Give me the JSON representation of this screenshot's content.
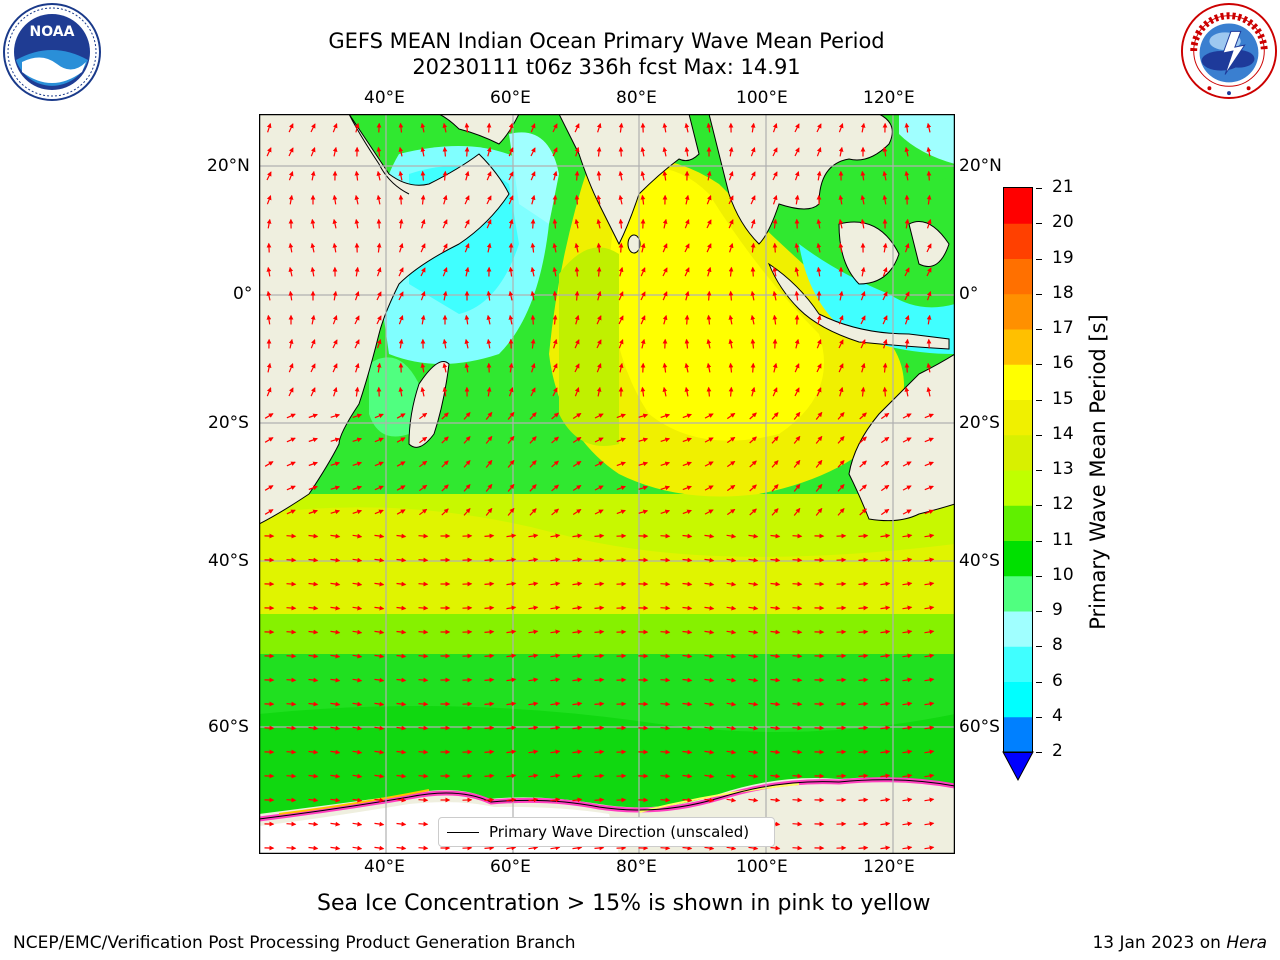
{
  "title": {
    "line1": "GEFS MEAN Indian Ocean Primary Wave Mean Period",
    "line2": "20230111 t06z 336h fcst   Max: 14.91"
  },
  "logos": {
    "noaa": {
      "text": "NOAA",
      "ring_text": "NATIONAL OCEANIC AND ATMOSPHERIC ADMINISTRATION · U.S. DEPARTMENT OF COMMERCE"
    },
    "nws": {
      "ring_text": "NATIONAL WEATHER SERVICE"
    }
  },
  "map": {
    "lon_ticks": [
      "40°E",
      "60°E",
      "80°E",
      "100°E",
      "120°E"
    ],
    "lat_ticks_left": [
      "20°N",
      "0°",
      "20°S",
      "40°S",
      "60°S"
    ],
    "lat_ticks_right": [
      "20°N",
      "0°",
      "20°S",
      "40°S",
      "60°S"
    ],
    "legend_label": "Primary Wave Direction (unscaled)",
    "extent": {
      "lon": [
        20,
        130
      ],
      "lat": [
        -75,
        27
      ]
    }
  },
  "colorbar": {
    "label": "Primary Wave Mean Period [s]",
    "ticks": [
      "21",
      "20",
      "19",
      "18",
      "17",
      "16",
      "15",
      "14",
      "13",
      "12",
      "11",
      "10",
      "9",
      "8",
      "6",
      "4",
      "2"
    ],
    "bins": [
      {
        "from": 2,
        "to": 4,
        "color": "#0080ff"
      },
      {
        "from": 4,
        "to": 6,
        "color": "#00ffff"
      },
      {
        "from": 6,
        "to": 8,
        "color": "#40ffff"
      },
      {
        "from": 8,
        "to": 9,
        "color": "#a0ffff"
      },
      {
        "from": 9,
        "to": 10,
        "color": "#50ff80"
      },
      {
        "from": 10,
        "to": 11,
        "color": "#00e000"
      },
      {
        "from": 11,
        "to": 12,
        "color": "#60f000"
      },
      {
        "from": 12,
        "to": 13,
        "color": "#c0ff00"
      },
      {
        "from": 13,
        "to": 14,
        "color": "#d8f000"
      },
      {
        "from": 14,
        "to": 15,
        "color": "#f0f000"
      },
      {
        "from": 15,
        "to": 16,
        "color": "#ffff00"
      },
      {
        "from": 16,
        "to": 17,
        "color": "#ffc000"
      },
      {
        "from": 17,
        "to": 18,
        "color": "#ff9000"
      },
      {
        "from": 18,
        "to": 19,
        "color": "#ff7000"
      },
      {
        "from": 19,
        "to": 20,
        "color": "#ff4000"
      },
      {
        "from": 20,
        "to": 21,
        "color": "#ff0000"
      }
    ],
    "under_color": "#0000ff"
  },
  "caption": "Sea Ice Concentration > 15% is shown in pink to yellow",
  "footer": {
    "left": "NCEP/EMC/Verification Post Processing Product Generation Branch",
    "right_prefix": "13 Jan 2023 on ",
    "right_machine": "Hera"
  },
  "colors": {
    "land": "#efefdf",
    "arrow": "#ff0000",
    "grid": "#b0b0b0",
    "ice": "#ff40c0"
  }
}
